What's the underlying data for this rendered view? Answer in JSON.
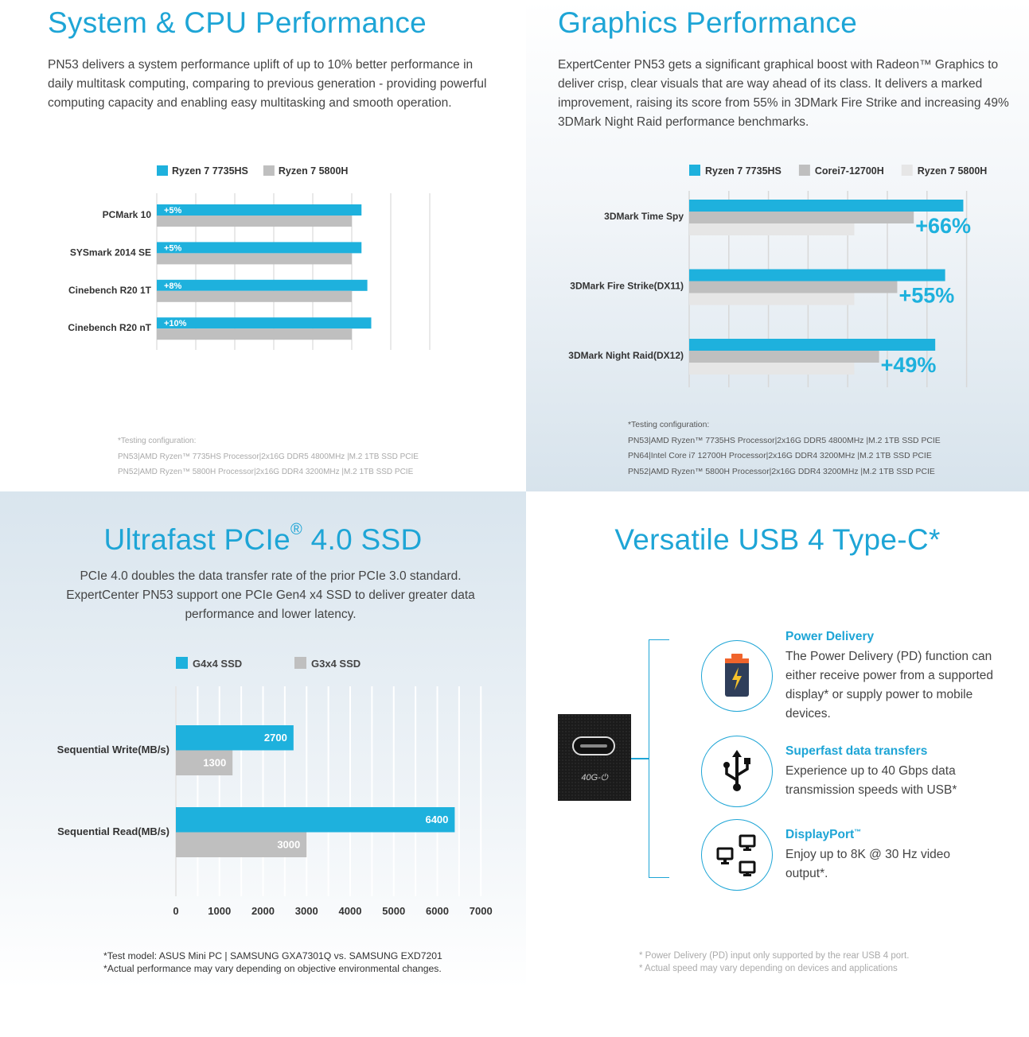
{
  "system": {
    "title": "System & CPU Performance",
    "desc": "PN53 delivers a system performance uplift of up to 10% better performance in daily multitask computing, comparing to previous generation - providing powerful computing capacity and enabling easy multitasking and smooth operation.",
    "notes": [
      "*Testing configuration:",
      "PN53|AMD Ryzen™ 7735HS Processor|2x16G DDR5 4800MHz |M.2 1TB SSD PCIE",
      "PN52|AMD Ryzen™ 5800H Processor|2x16G DDR4 3200MHz |M.2 1TB SSD PCIE"
    ]
  },
  "graphics": {
    "title": "Graphics Performance",
    "desc": "ExpertCenter PN53 gets a significant graphical boost with Radeon™ Graphics to deliver crisp, clear visuals that are way ahead of its class. It delivers a marked improvement, raising its score from 55% in 3DMark Fire Strike and increasing 49% 3DMark Night Raid performance benchmarks.",
    "notes": [
      "*Testing configuration:",
      "PN53|AMD Ryzen™ 7735HS Processor|2x16G DDR5 4800MHz |M.2 1TB SSD PCIE",
      "PN64|Intel Core i7 12700H Processor|2x16G DDR4 3200MHz |M.2 1TB SSD PCIE",
      "PN52|AMD Ryzen™ 5800H Processor|2x16G DDR4 3200MHz |M.2 1TB SSD PCIE"
    ]
  },
  "ssd": {
    "title": "Ultrafast PCIe",
    "title_sup": "®",
    "title_tail": " 4.0 SSD",
    "desc": "PCIe 4.0 doubles the data transfer rate of the prior PCIe 3.0 standard. ExpertCenter PN53 support one PCIe Gen4 x4 SSD to deliver greater data performance and lower latency.",
    "notes": [
      "*Test model: ASUS Mini PC | SAMSUNG GXA7301Q vs. SAMSUNG EXD7201",
      "*Actual performance may vary depending on objective environmental changes."
    ]
  },
  "usb": {
    "title": "Versatile USB 4 Type-C*",
    "port_label": "40G-⏻",
    "features": [
      {
        "heading": "Power Delivery",
        "sup": "",
        "text": "The Power Delivery (PD) function can either receive power from a supported display* or supply power to mobile devices.",
        "icon": "battery-icon"
      },
      {
        "heading": "Superfast data transfers",
        "sup": "",
        "text": "Experience up to 40 Gbps data transmission speeds with USB*",
        "icon": "usb-icon"
      },
      {
        "heading": "DisplayPort",
        "sup": "™",
        "text": "Enjoy up to 8K @ 30 Hz video output*.",
        "icon": "monitors-icon"
      }
    ],
    "notes": [
      "* Power Delivery (PD) input only supported by the rear USB 4 port.",
      "* Actual speed may vary depending on devices and applications"
    ]
  },
  "colors": {
    "accent": "#1eb1dd",
    "gray": "#bfbfbf",
    "lightgray": "#e6e6e6",
    "title": "#1ea5d6"
  },
  "chart_data": [
    {
      "type": "bar",
      "orientation": "horizontal",
      "categories": [
        "PCMark 10",
        "SYSmark 2014 SE",
        "Cinebench R20 1T",
        "Cinebench R20 nT"
      ],
      "series": [
        {
          "name": "Ryzen 7 7735HS",
          "values": [
            105,
            105,
            108,
            110
          ]
        },
        {
          "name": "Ryzen 7 5800H",
          "values": [
            100,
            100,
            100,
            100
          ]
        }
      ],
      "labels": [
        "+5%",
        "+5%",
        "+8%",
        "+10%"
      ],
      "xlim": [
        0,
        140
      ],
      "grid": true,
      "legend": "top"
    },
    {
      "type": "bar",
      "orientation": "horizontal",
      "categories": [
        "3DMark Time Spy",
        "3DMark Fire Strike(DX11)",
        "3DMark Night Raid(DX12)"
      ],
      "series": [
        {
          "name": "Ryzen 7 7735HS",
          "values": [
            166,
            155,
            149
          ]
        },
        {
          "name": "Corei7-12700H",
          "values": [
            136,
            126,
            115
          ]
        },
        {
          "name": "Ryzen 7 5800H",
          "values": [
            100,
            100,
            100
          ]
        }
      ],
      "labels": [
        "+66%",
        "+55%",
        "+49%"
      ],
      "xlim": [
        0,
        190
      ],
      "grid": true,
      "legend": "top"
    },
    {
      "type": "bar",
      "orientation": "horizontal",
      "categories": [
        "Sequential Write(MB/s)",
        "Sequential Read(MB/s)"
      ],
      "series": [
        {
          "name": "G4x4 SSD",
          "values": [
            2700,
            6400
          ]
        },
        {
          "name": "G3x4 SSD",
          "values": [
            1300,
            3000
          ]
        }
      ],
      "xticks": [
        "0",
        "1000",
        "2000",
        "3000",
        "4000",
        "5000",
        "6000",
        "7000"
      ],
      "xlim": [
        0,
        7000
      ],
      "grid": true,
      "legend": "top"
    }
  ]
}
